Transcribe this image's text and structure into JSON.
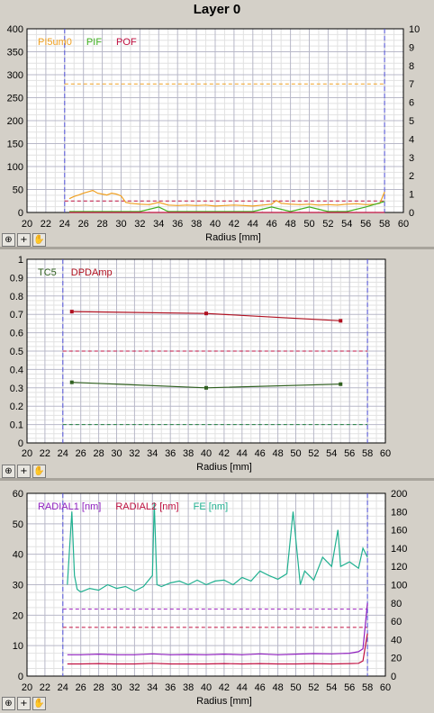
{
  "window": {
    "title": "Layer 0"
  },
  "toolbar": {
    "zoom_icon": "zoom-icon",
    "crosshair_icon": "crosshair-icon",
    "pan_icon": "hand-pan-icon"
  },
  "chart_data": [
    {
      "type": "line",
      "xlabel": "Radius [mm]",
      "xlim": [
        20,
        60
      ],
      "x_ticks": [
        20,
        22,
        24,
        26,
        28,
        30,
        32,
        34,
        36,
        38,
        40,
        42,
        44,
        46,
        48,
        50,
        52,
        54,
        56,
        58,
        60
      ],
      "ylim": [
        0,
        400
      ],
      "y_ticks": [
        0,
        50,
        100,
        150,
        200,
        250,
        300,
        350,
        400
      ],
      "y2lim": [
        0,
        10
      ],
      "y2_ticks": [
        0,
        1,
        2,
        3,
        4,
        5,
        6,
        7,
        8,
        9,
        10
      ],
      "grid": true,
      "legend_position": "top-left",
      "markers": {
        "x": [
          24,
          58
        ],
        "color": "#5555dd"
      },
      "thresholds": [
        {
          "axis": "left",
          "value": 280,
          "color": "#f0a020"
        },
        {
          "axis": "left",
          "value": 25,
          "color": "#c01040"
        }
      ],
      "series": [
        {
          "name": "PI5um0",
          "axis": "left",
          "color": "#f0a020",
          "x": [
            24.5,
            25,
            25.5,
            26,
            26.5,
            27,
            27.5,
            28,
            28.5,
            29,
            29.5,
            30,
            30.5,
            31,
            32,
            33,
            34,
            35,
            36,
            37,
            38,
            39,
            40,
            41,
            42,
            43,
            44,
            45,
            46,
            46.5,
            47,
            48,
            49,
            50,
            51,
            52,
            53,
            54,
            55,
            56,
            57,
            57.5,
            58
          ],
          "y": [
            30,
            35,
            38,
            42,
            45,
            48,
            42,
            40,
            38,
            42,
            40,
            36,
            22,
            20,
            18,
            17,
            22,
            16,
            15,
            16,
            15,
            16,
            14,
            15,
            16,
            15,
            14,
            16,
            18,
            26,
            20,
            18,
            17,
            18,
            16,
            17,
            16,
            18,
            19,
            17,
            18,
            20,
            45
          ]
        },
        {
          "name": "PIF",
          "axis": "right",
          "color": "#40b020",
          "x": [
            24.5,
            26,
            28,
            30,
            32,
            34,
            35,
            36,
            38,
            40,
            42,
            44,
            46,
            48,
            50,
            52,
            54,
            56,
            58
          ],
          "y": [
            0.05,
            0.05,
            0.05,
            0.05,
            0.05,
            0.3,
            0.05,
            0.05,
            0.05,
            0.05,
            0.05,
            0.05,
            0.3,
            0.05,
            0.3,
            0.05,
            0.05,
            0.3,
            0.6
          ]
        },
        {
          "name": "POF",
          "axis": "right",
          "color": "#c01040",
          "x": [
            24.5,
            58
          ],
          "y": [
            0,
            0
          ]
        }
      ]
    },
    {
      "type": "line",
      "xlabel": "Radius [mm]",
      "xlim": [
        20,
        60
      ],
      "x_ticks": [
        20,
        22,
        24,
        26,
        28,
        30,
        32,
        34,
        36,
        38,
        40,
        42,
        44,
        46,
        48,
        50,
        52,
        54,
        56,
        58,
        60
      ],
      "ylim": [
        0,
        1
      ],
      "y_ticks": [
        0,
        0.1,
        0.2,
        0.3,
        0.4,
        0.5,
        0.6,
        0.7,
        0.8,
        0.9,
        1
      ],
      "grid": true,
      "legend_position": "top-left",
      "markers": {
        "x": [
          24,
          58
        ],
        "color": "#5555dd"
      },
      "thresholds": [
        {
          "axis": "left",
          "value": 0.5,
          "color": "#c01040"
        },
        {
          "axis": "left",
          "value": 0.1,
          "color": "#208040"
        }
      ],
      "series": [
        {
          "name": "TC5",
          "axis": "left",
          "color": "#306020",
          "points": true,
          "x": [
            25,
            40,
            55
          ],
          "y": [
            0.33,
            0.3,
            0.32
          ]
        },
        {
          "name": "DPDAmp",
          "axis": "left",
          "color": "#b01020",
          "points": true,
          "x": [
            25,
            40,
            55
          ],
          "y": [
            0.715,
            0.705,
            0.665
          ]
        }
      ]
    },
    {
      "type": "line",
      "xlabel": "Radius [mm]",
      "xlim": [
        20,
        60
      ],
      "x_ticks": [
        20,
        22,
        24,
        26,
        28,
        30,
        32,
        34,
        36,
        38,
        40,
        42,
        44,
        46,
        48,
        50,
        52,
        54,
        56,
        58,
        60
      ],
      "ylim": [
        0,
        60
      ],
      "y_ticks": [
        0,
        10,
        20,
        30,
        40,
        50,
        60
      ],
      "y2lim": [
        0,
        200
      ],
      "y2_ticks": [
        0,
        20,
        40,
        60,
        80,
        100,
        120,
        140,
        160,
        180,
        200
      ],
      "grid": true,
      "legend_position": "top-left",
      "markers": {
        "x": [
          24,
          58
        ],
        "color": "#5555dd"
      },
      "thresholds": [
        {
          "axis": "left",
          "value": 22,
          "color": "#a020c0"
        },
        {
          "axis": "left",
          "value": 16,
          "color": "#c01040"
        }
      ],
      "series": [
        {
          "name": "RADIAL1 [nm]",
          "axis": "left",
          "color": "#9020c0",
          "x": [
            24.5,
            26,
            28,
            30,
            32,
            34,
            36,
            38,
            40,
            42,
            44,
            46,
            48,
            50,
            52,
            54,
            56,
            57,
            57.5,
            58
          ],
          "y": [
            7,
            7,
            7.2,
            7,
            7,
            7.3,
            7,
            7.1,
            7,
            7.2,
            7,
            7.3,
            7,
            7.2,
            7.4,
            7.3,
            7.5,
            8,
            9,
            24
          ]
        },
        {
          "name": "RADIAL2 [nm]",
          "axis": "left",
          "color": "#c01040",
          "x": [
            24.5,
            26,
            28,
            30,
            32,
            34,
            36,
            38,
            40,
            42,
            44,
            46,
            48,
            50,
            52,
            54,
            56,
            57,
            57.5,
            58
          ],
          "y": [
            4,
            4,
            4.1,
            4,
            4,
            4.2,
            4,
            4,
            4,
            4.1,
            4,
            4.1,
            4,
            4,
            4.1,
            4,
            4.1,
            4.2,
            5,
            14
          ]
        },
        {
          "name": "FE [nm]",
          "axis": "right",
          "color": "#20b090",
          "x": [
            24.5,
            25,
            25.3,
            25.6,
            26,
            27,
            28,
            29,
            30,
            31,
            32,
            33,
            34,
            34.2,
            34.5,
            35,
            36,
            37,
            38,
            39,
            40,
            41,
            42,
            43,
            44,
            45,
            46,
            47,
            48,
            49,
            49.7,
            50,
            50.5,
            51,
            52,
            53,
            54,
            54.7,
            55,
            56,
            57,
            57.5,
            58
          ],
          "y": [
            100,
            180,
            110,
            95,
            92,
            96,
            94,
            100,
            96,
            98,
            93,
            98,
            110,
            190,
            100,
            98,
            102,
            104,
            100,
            105,
            100,
            104,
            105,
            100,
            108,
            104,
            115,
            110,
            106,
            112,
            180,
            150,
            100,
            115,
            105,
            130,
            120,
            160,
            120,
            125,
            118,
            140,
            130
          ]
        }
      ]
    }
  ]
}
